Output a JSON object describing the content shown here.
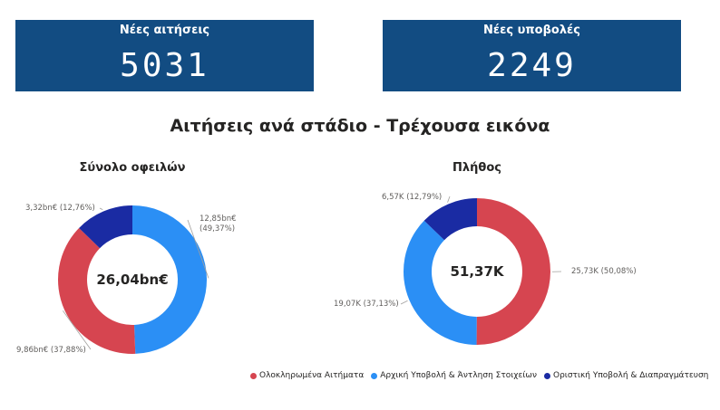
{
  "kpis": {
    "new_requests": {
      "label": "Νέες αιτήσεις",
      "value": "5031"
    },
    "new_submissions": {
      "label": "Νέες υποβολές",
      "value": "2249"
    }
  },
  "section_title": "Αιτήσεις ανά στάδιο - Τρέχουσα εικόνα",
  "legend": [
    {
      "label": "Ολοκληρωμένα Αιτήματα",
      "color": "#d64550"
    },
    {
      "label": "Αρχική Υποβολή & Άντληση Στοιχείων",
      "color": "#2b8ff5"
    },
    {
      "label": "Οριστική Υποβολή & Διαπραγμάτευση",
      "color": "#1a2ba3"
    }
  ],
  "chart_data": [
    {
      "type": "pie",
      "title": "Σύνολο οφειλών",
      "center_label": "26,04bn€",
      "slices": [
        {
          "name": "Αρχική Υποβολή & Άντληση Στοιχείων",
          "value": 12.85,
          "percent": 49.37,
          "label_line1": "12,85bn€",
          "label_line2": "(49,37%)",
          "color": "#2b8ff5"
        },
        {
          "name": "Ολοκληρωμένα Αιτήματα",
          "value": 9.86,
          "percent": 37.88,
          "label_line1": "9,86bn€ (37,88%)",
          "label_line2": "",
          "color": "#d64550"
        },
        {
          "name": "Οριστική Υποβολή & Διαπραγμάτευση",
          "value": 3.32,
          "percent": 12.76,
          "label_line1": "3,32bn€ (12,76%)",
          "label_line2": "",
          "color": "#1a2ba3"
        }
      ]
    },
    {
      "type": "pie",
      "title": "Πλήθος",
      "center_label": "51,37K",
      "slices": [
        {
          "name": "Ολοκληρωμένα Αιτήματα",
          "value": 25.73,
          "percent": 50.08,
          "label_line1": "25,73K (50,08%)",
          "label_line2": "",
          "color": "#d64550"
        },
        {
          "name": "Αρχική Υποβολή & Άντληση Στοιχείων",
          "value": 19.07,
          "percent": 37.13,
          "label_line1": "19,07K (37,13%)",
          "label_line2": "",
          "color": "#2b8ff5"
        },
        {
          "name": "Οριστική Υποβολή & Διαπραγμάτευση",
          "value": 6.57,
          "percent": 12.79,
          "label_line1": "6,57K (12,79%)",
          "label_line2": "",
          "color": "#1a2ba3"
        }
      ]
    }
  ]
}
